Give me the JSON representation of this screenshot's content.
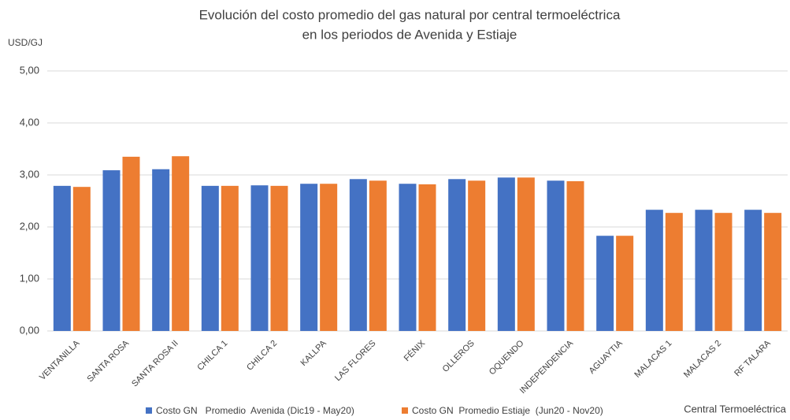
{
  "chart_data": {
    "type": "bar",
    "title": "Evolución del costo promedio del gas natural por central termoeléctrica",
    "subtitle": "en los periodos de Avenida y Estiaje",
    "y_label": "USD/GJ",
    "x_label": "Central Termoeléctrica",
    "categories": [
      "VENTANILLA",
      "SANTA ROSA",
      "SANTA ROSA II",
      "CHILCA 1",
      "CHILCA 2",
      "KALLPA",
      "LAS FLORES",
      "FÉNIX",
      "OLLEROS",
      "OQUENDO",
      "INDEPENDENCIA",
      "AGUAYTIA",
      "MALACAS 1",
      "MALACAS 2",
      "RF TALARA"
    ],
    "series": [
      {
        "name": "Costo GN   Promedio  Avenida (Dic19 - May20)",
        "color": "#4472c4",
        "values": [
          2.79,
          3.09,
          3.11,
          2.79,
          2.8,
          2.83,
          2.92,
          2.83,
          2.92,
          2.95,
          2.89,
          1.83,
          2.33,
          2.33,
          2.33
        ]
      },
      {
        "name": "Costo GN  Promedio Estiaje  (Jun20 - Nov20)",
        "color": "#ed7d31",
        "values": [
          2.77,
          3.35,
          3.36,
          2.79,
          2.79,
          2.83,
          2.89,
          2.82,
          2.89,
          2.95,
          2.88,
          1.83,
          2.27,
          2.27,
          2.27
        ]
      }
    ],
    "ylim": [
      0,
      5
    ],
    "yticks": [
      {
        "value": 0,
        "label": "0,00"
      },
      {
        "value": 1,
        "label": "1,00"
      },
      {
        "value": 2,
        "label": "2,00"
      },
      {
        "value": 3,
        "label": "3,00"
      },
      {
        "value": 4,
        "label": "4,00"
      },
      {
        "value": 5,
        "label": "5,00"
      }
    ],
    "grid": true,
    "legend": "bottom"
  }
}
